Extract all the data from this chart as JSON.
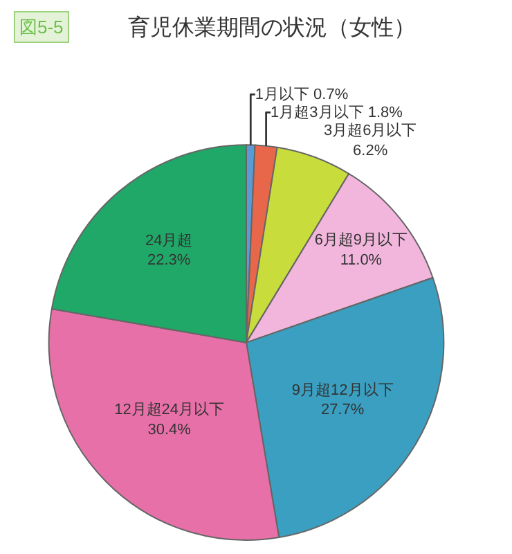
{
  "chart_data": {
    "type": "pie",
    "title": "育児休業期間の状況（女性）",
    "annotations": [
      "図5-5"
    ],
    "categories": [
      "1月以下",
      "1月超3月以下",
      "3月超6月以下",
      "6月超9月以下",
      "9月超12月以下",
      "12月超24月以下",
      "24月超"
    ],
    "values": [
      0.7,
      1.8,
      6.2,
      11.0,
      27.7,
      30.4,
      22.3
    ],
    "value_labels": [
      "0.7%",
      "1.8%",
      "6.2%",
      "11.0%",
      "27.7%",
      "30.4%",
      "22.3%"
    ],
    "colors": [
      "#5b9bd5",
      "#e8674a",
      "#c8dc3c",
      "#f2b6dc",
      "#3a9fc0",
      "#e870a8",
      "#20a868"
    ],
    "legend": false
  }
}
